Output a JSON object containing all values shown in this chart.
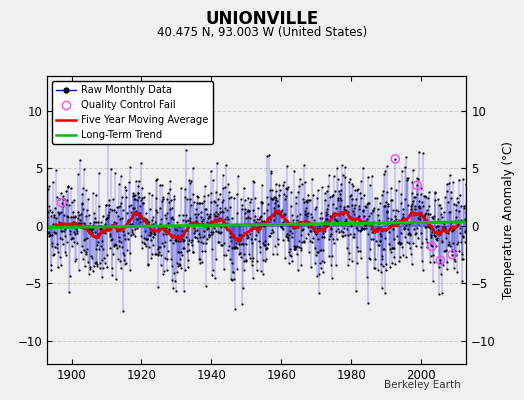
{
  "title": "UNIONVILLE",
  "subtitle": "40.475 N, 93.003 W (United States)",
  "ylabel": "Temperature Anomaly (°C)",
  "credit": "Berkeley Earth",
  "xlim": [
    1893,
    2013
  ],
  "ylim": [
    -12,
    13
  ],
  "yticks": [
    -10,
    -5,
    0,
    5,
    10
  ],
  "xticks": [
    1900,
    1920,
    1940,
    1960,
    1980,
    2000
  ],
  "seed": 42,
  "n_months": 1440,
  "start_year": 1893,
  "background_color": "#f0f0f0",
  "raw_line_color": "#0000dd",
  "raw_dot_color": "#000000",
  "qc_fail_color": "#ff44ff",
  "moving_avg_color": "#dd0000",
  "trend_color": "#00bb00",
  "trend_slope": 0.004,
  "trend_intercept": -0.15,
  "noise_std": 2.2,
  "bias": -0.3
}
